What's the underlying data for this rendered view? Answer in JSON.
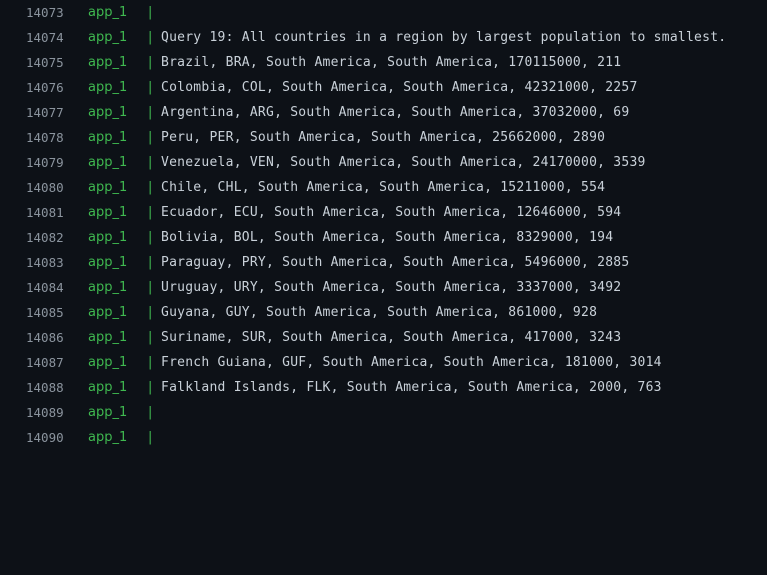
{
  "log": {
    "separator": "|",
    "lines": [
      {
        "number": "14073",
        "service": "app_1",
        "message": ""
      },
      {
        "number": "14074",
        "service": "app_1",
        "message": "Query 19: All countries in a region by largest population to smallest."
      },
      {
        "number": "14075",
        "service": "app_1",
        "message": "Brazil, BRA, South America, South America, 170115000, 211"
      },
      {
        "number": "14076",
        "service": "app_1",
        "message": "Colombia, COL, South America, South America, 42321000, 2257"
      },
      {
        "number": "14077",
        "service": "app_1",
        "message": "Argentina, ARG, South America, South America, 37032000, 69"
      },
      {
        "number": "14078",
        "service": "app_1",
        "message": "Peru, PER, South America, South America, 25662000, 2890"
      },
      {
        "number": "14079",
        "service": "app_1",
        "message": "Venezuela, VEN, South America, South America, 24170000, 3539"
      },
      {
        "number": "14080",
        "service": "app_1",
        "message": "Chile, CHL, South America, South America, 15211000, 554"
      },
      {
        "number": "14081",
        "service": "app_1",
        "message": "Ecuador, ECU, South America, South America, 12646000, 594"
      },
      {
        "number": "14082",
        "service": "app_1",
        "message": "Bolivia, BOL, South America, South America, 8329000, 194"
      },
      {
        "number": "14083",
        "service": "app_1",
        "message": "Paraguay, PRY, South America, South America, 5496000, 2885"
      },
      {
        "number": "14084",
        "service": "app_1",
        "message": "Uruguay, URY, South America, South America, 3337000, 3492"
      },
      {
        "number": "14085",
        "service": "app_1",
        "message": "Guyana, GUY, South America, South America, 861000, 928"
      },
      {
        "number": "14086",
        "service": "app_1",
        "message": "Suriname, SUR, South America, South America, 417000, 3243"
      },
      {
        "number": "14087",
        "service": "app_1",
        "message": "French Guiana, GUF, South America, South America, 181000, 3014"
      },
      {
        "number": "14088",
        "service": "app_1",
        "message": "Falkland Islands, FLK, South America, South America, 2000, 763"
      },
      {
        "number": "14089",
        "service": "app_1",
        "message": ""
      },
      {
        "number": "14090",
        "service": "app_1",
        "message": ""
      }
    ]
  }
}
